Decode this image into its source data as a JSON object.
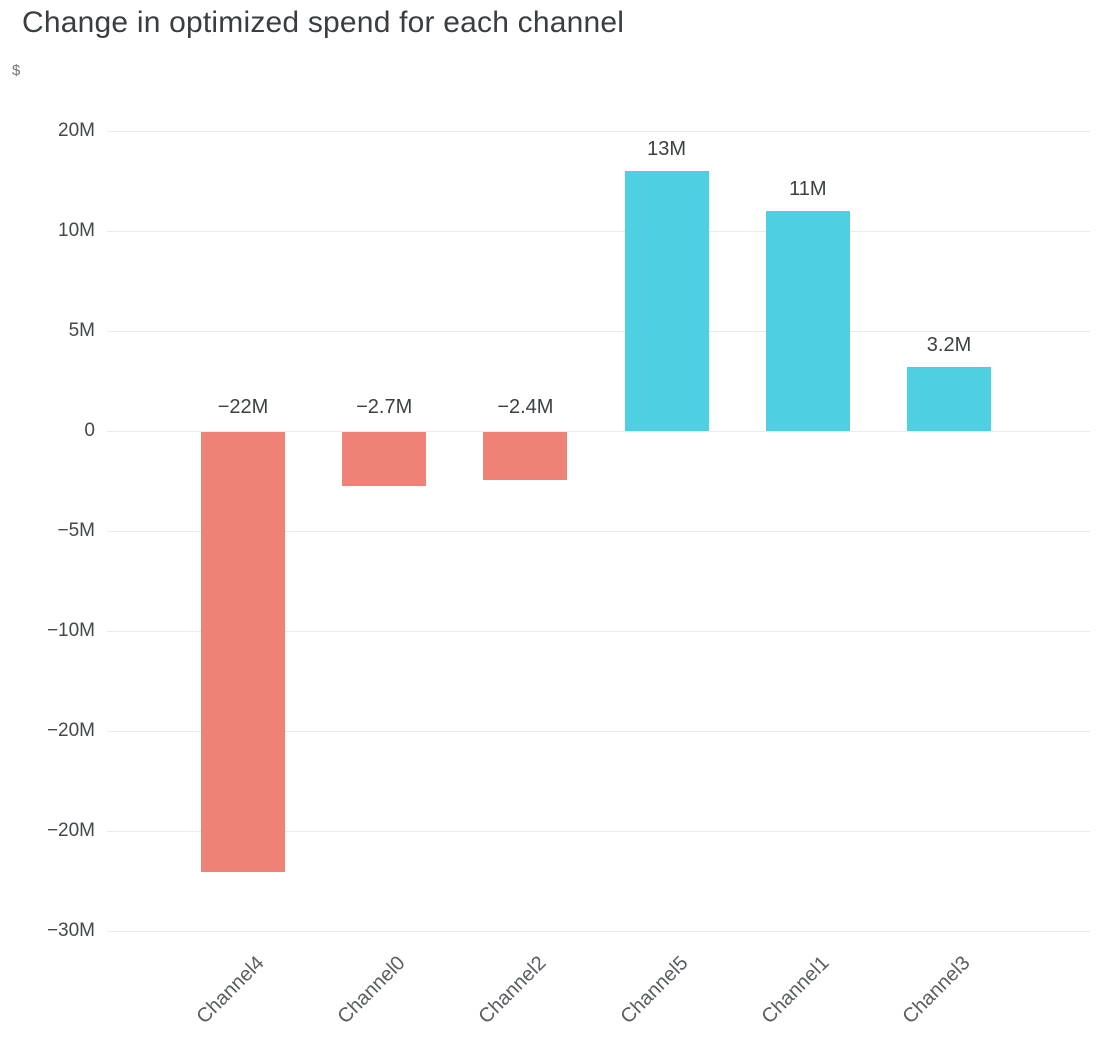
{
  "header": {
    "title": "Change in optimized spend for each channel",
    "unit": "$"
  },
  "colors": {
    "positive": "#4fd0e2",
    "negative": "#ee8277",
    "gridline": "#e8eaed",
    "text": "#3c4043"
  },
  "chart_data": {
    "type": "bar",
    "title": "Change in optimized spend for each channel",
    "xlabel": "",
    "ylabel": "$",
    "value_unit": "millions of dollars",
    "categories": [
      "Channel4",
      "Channel0",
      "Channel2",
      "Channel5",
      "Channel1",
      "Channel3"
    ],
    "values": [
      -22,
      -2.7,
      -2.4,
      13,
      11,
      3.2
    ],
    "bar_labels": [
      "−22M",
      "−2.7M",
      "−2.4M",
      "13M",
      "11M",
      "3.2M"
    ],
    "bar_colors": [
      "negative",
      "negative",
      "negative",
      "positive",
      "positive",
      "positive"
    ],
    "y_ticks": [
      "20M",
      "10M",
      "5M",
      "0",
      "−5M",
      "−10M",
      "−20M",
      "−20M",
      "−30M"
    ],
    "grid": true,
    "legend": false,
    "ylim_px_mapping": "zero line at 4th tick, 5M per gridline step"
  }
}
